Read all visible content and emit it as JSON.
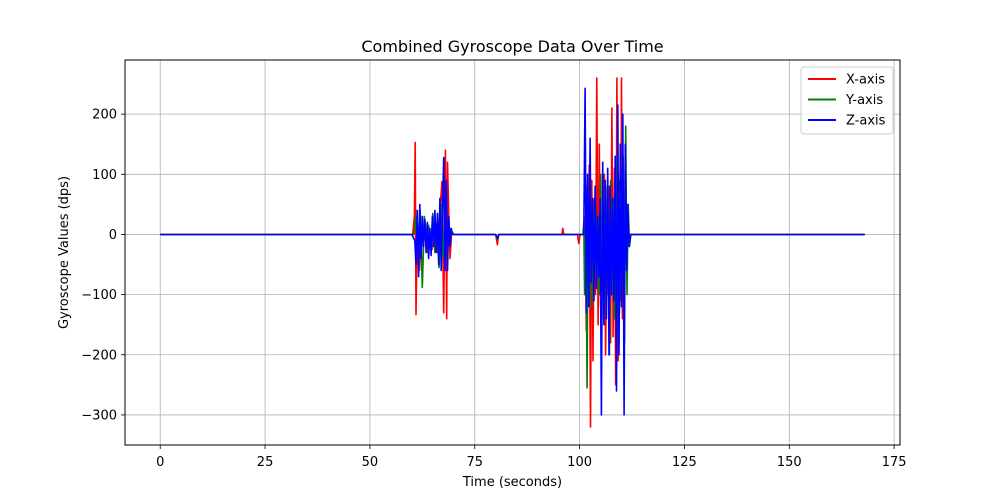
{
  "chart_data": {
    "type": "line",
    "title": "Combined Gyroscope Data Over Time",
    "xlabel": "Time (seconds)",
    "ylabel": "Gyroscope Values (dps)",
    "xlim": [
      -8.4,
      176.4
    ],
    "ylim": [
      -350,
      290
    ],
    "xticks": [
      0,
      25,
      50,
      75,
      100,
      125,
      150,
      175
    ],
    "yticks": [
      -300,
      -200,
      -100,
      0,
      100,
      200
    ],
    "grid": true,
    "legend_position": "top-right",
    "series": [
      {
        "name": "X-axis",
        "color": "#ff0000",
        "x": [
          0,
          60.2,
          60.6,
          60.8,
          61.0,
          61.3,
          61.8,
          62.3,
          62.7,
          63.2,
          63.7,
          64.2,
          64.8,
          65.4,
          66.0,
          66.7,
          67.2,
          67.6,
          68.0,
          68.3,
          68.5,
          68.8,
          69.1,
          69.5,
          70.0,
          80.0,
          80.4,
          80.7,
          81.0,
          95.8,
          96.0,
          96.2,
          99.5,
          99.8,
          100.1,
          101.0,
          101.3,
          101.6,
          101.8,
          102.0,
          102.3,
          102.6,
          102.9,
          103.2,
          103.5,
          103.8,
          104.1,
          104.4,
          104.7,
          105.0,
          105.3,
          105.6,
          105.9,
          106.2,
          106.5,
          106.8,
          107.1,
          107.4,
          107.7,
          108.0,
          108.3,
          108.6,
          108.9,
          109.2,
          109.5,
          109.8,
          110.0,
          110.2,
          110.4,
          110.6,
          110.8,
          111.0,
          111.2,
          111.4,
          111.6,
          111.8,
          112.2,
          168
        ],
        "y": [
          0,
          0,
          30,
          153,
          -133,
          20,
          -60,
          15,
          -20,
          18,
          -30,
          10,
          -25,
          20,
          -30,
          40,
          88,
          -130,
          140,
          -140,
          120,
          30,
          -40,
          5,
          0,
          0,
          -17,
          0,
          0,
          0,
          10,
          0,
          0,
          -15,
          0,
          0,
          30,
          -160,
          80,
          -120,
          115,
          -320,
          90,
          -210,
          60,
          -100,
          260,
          -150,
          150,
          -120,
          30,
          -80,
          100,
          -200,
          20,
          -100,
          80,
          -180,
          210,
          -170,
          110,
          -250,
          260,
          -210,
          90,
          -110,
          260,
          -140,
          130,
          -60,
          20,
          -30,
          10,
          0,
          0,
          0,
          0,
          0
        ]
      },
      {
        "name": "Y-axis",
        "color": "#008000",
        "x": [
          0,
          60.5,
          61.0,
          61.5,
          62.0,
          62.5,
          63.0,
          63.5,
          64.0,
          64.5,
          65.0,
          65.5,
          66.0,
          66.5,
          67.0,
          67.5,
          68.0,
          68.5,
          69.0,
          69.5,
          70.0,
          70.5,
          80.0,
          80.4,
          80.7,
          81.0,
          100.5,
          100.8,
          101.0,
          101.2,
          101.5,
          101.8,
          102.0,
          102.3,
          102.6,
          102.9,
          103.2,
          103.5,
          103.8,
          104.1,
          104.4,
          104.7,
          105.0,
          105.3,
          105.6,
          105.9,
          106.2,
          106.5,
          106.8,
          107.1,
          107.4,
          107.7,
          108.0,
          108.3,
          108.6,
          108.9,
          109.2,
          109.5,
          109.8,
          110.1,
          110.4,
          110.7,
          111.0,
          111.3,
          111.6,
          111.9,
          112.2,
          168
        ],
        "y": [
          0,
          0,
          30,
          -30,
          40,
          -88,
          30,
          -20,
          15,
          -25,
          35,
          -30,
          20,
          -55,
          50,
          -40,
          60,
          -20,
          10,
          5,
          0,
          0,
          0,
          -8,
          0,
          0,
          0,
          0,
          20,
          -100,
          27,
          -255,
          60,
          -110,
          80,
          -120,
          50,
          -60,
          40,
          -80,
          30,
          -100,
          100,
          -140,
          60,
          -120,
          80,
          -70,
          40,
          -200,
          90,
          -100,
          60,
          -140,
          130,
          -180,
          100,
          -130,
          80,
          -60,
          130,
          -180,
          180,
          -100,
          50,
          -20,
          0,
          0
        ]
      },
      {
        "name": "Z-axis",
        "color": "#0000ff",
        "x": [
          0,
          60.0,
          60.7,
          61.0,
          61.3,
          61.6,
          61.9,
          62.2,
          62.5,
          62.8,
          63.1,
          63.4,
          63.7,
          64.0,
          64.3,
          64.6,
          64.9,
          65.2,
          65.5,
          65.8,
          66.1,
          66.4,
          66.7,
          67.0,
          67.3,
          67.6,
          67.9,
          68.2,
          68.5,
          68.8,
          69.1,
          69.4,
          69.7,
          70.0,
          70.5,
          80.0,
          80.4,
          80.8,
          101.0,
          101.3,
          101.6,
          101.9,
          102.2,
          102.5,
          102.8,
          103.1,
          103.4,
          103.7,
          104.0,
          104.3,
          104.6,
          104.9,
          105.2,
          105.5,
          105.8,
          106.1,
          106.4,
          106.7,
          107.0,
          107.3,
          107.6,
          107.9,
          108.2,
          108.5,
          108.8,
          109.1,
          109.4,
          109.7,
          110.0,
          110.3,
          110.6,
          110.9,
          111.2,
          111.5,
          111.8,
          112.2,
          168
        ],
        "y": [
          0,
          0,
          -10,
          -50,
          40,
          -70,
          50,
          -40,
          30,
          -20,
          25,
          -30,
          20,
          -40,
          10,
          -35,
          30,
          -20,
          40,
          -30,
          35,
          -50,
          60,
          -60,
          40,
          128,
          -60,
          90,
          -60,
          30,
          -20,
          10,
          0,
          0,
          0,
          0,
          -6,
          0,
          0,
          243,
          -130,
          100,
          -120,
          160,
          -80,
          60,
          -110,
          80,
          -90,
          30,
          -70,
          60,
          -300,
          120,
          -150,
          90,
          -140,
          110,
          -200,
          80,
          -100,
          60,
          -110,
          130,
          -260,
          215,
          -200,
          150,
          -120,
          200,
          -300,
          150,
          -60,
          50,
          -20,
          0,
          0
        ]
      }
    ]
  }
}
